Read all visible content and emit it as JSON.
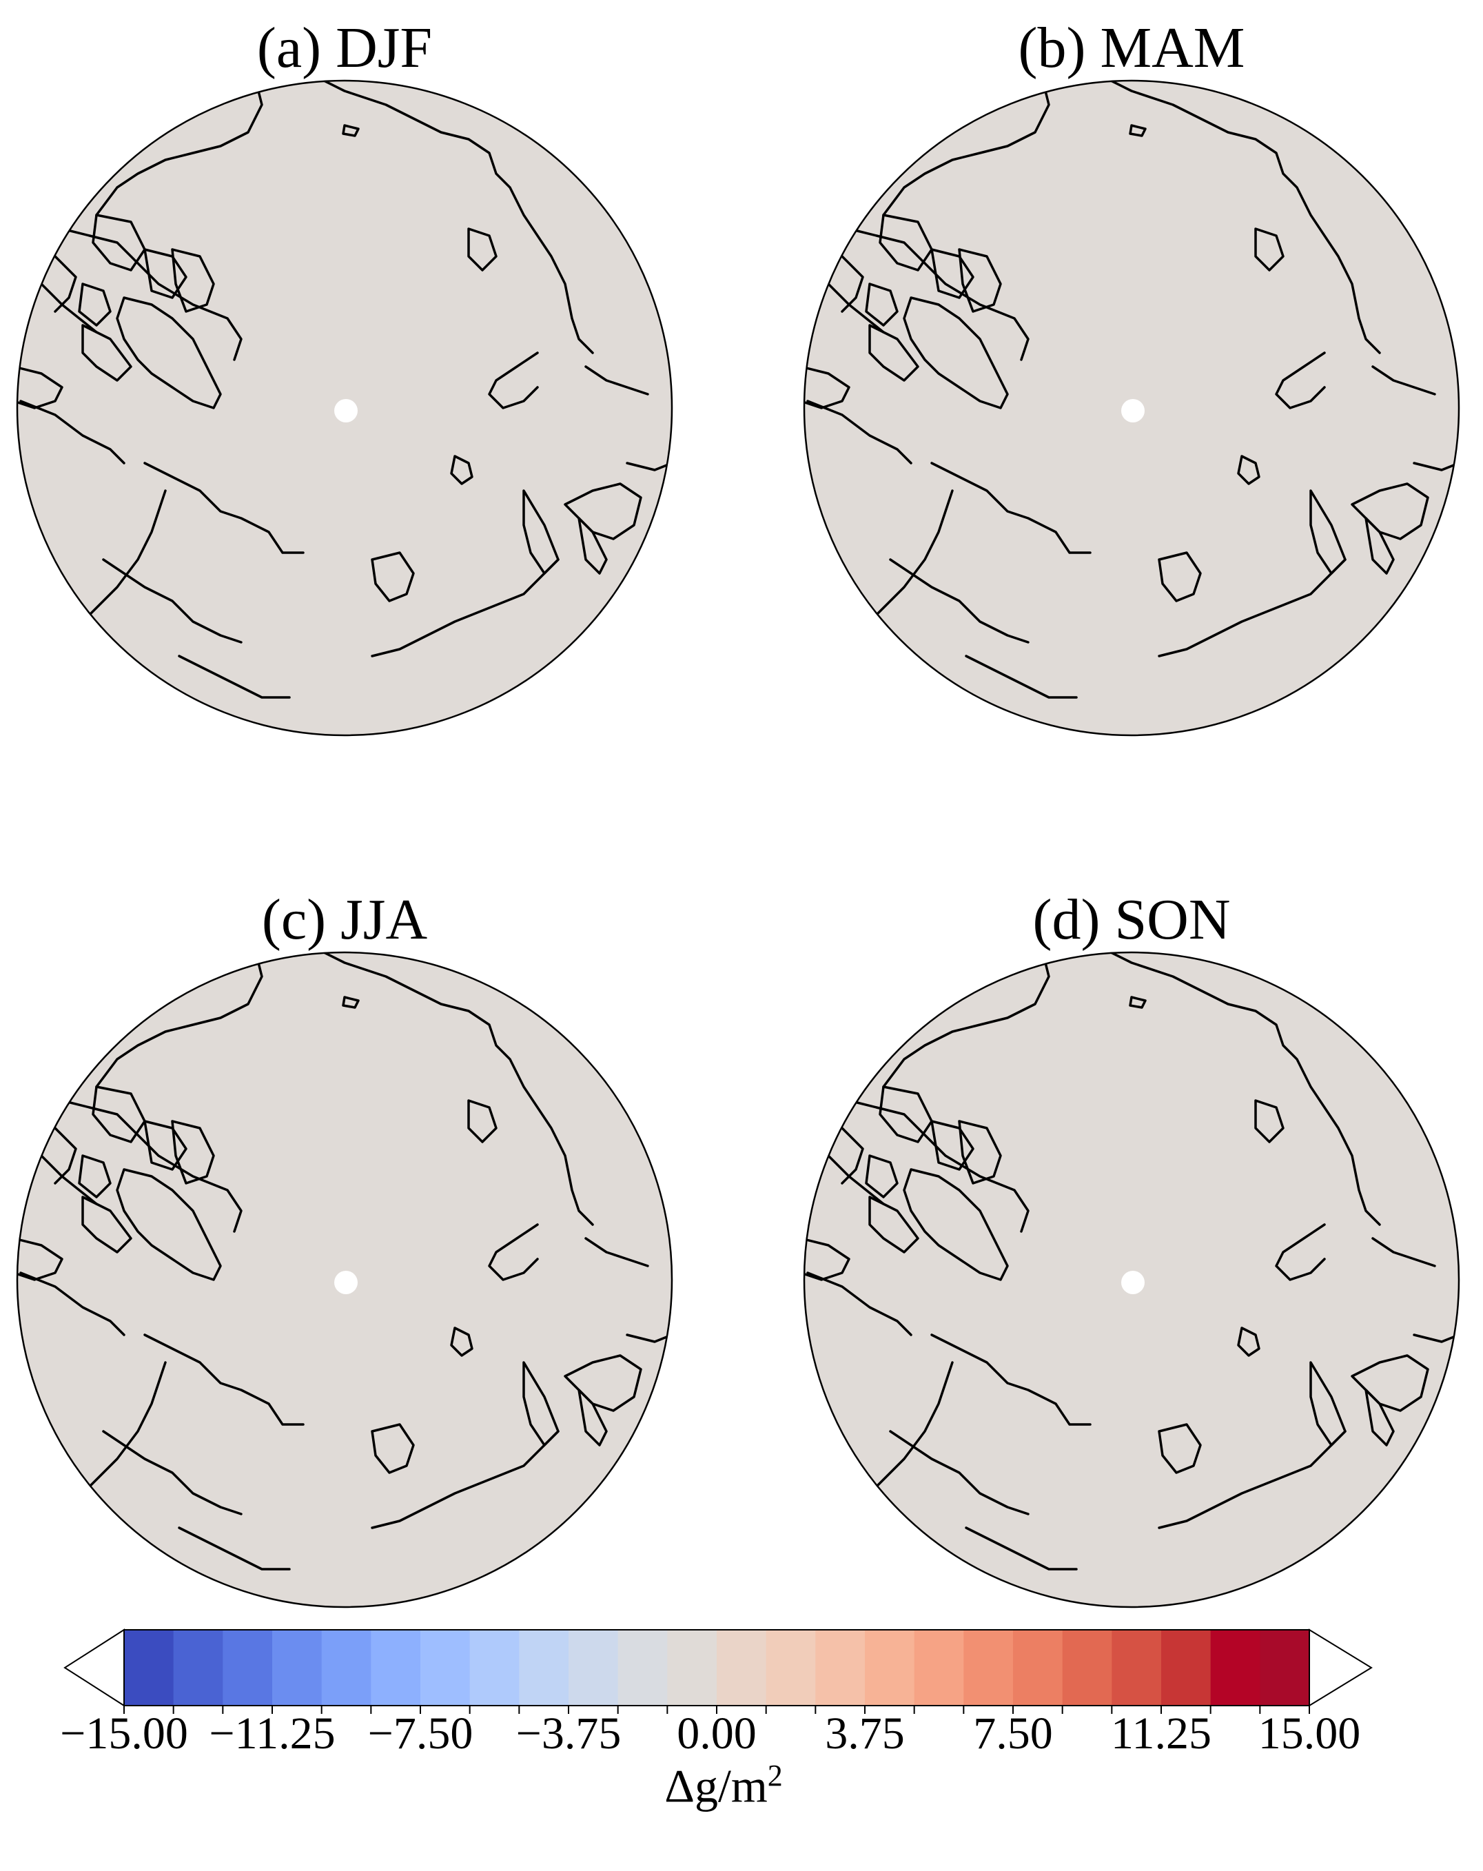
{
  "panels": [
    {
      "title": "(a) DJF"
    },
    {
      "title": "(b) MAM"
    },
    {
      "title": "(c) JJA"
    },
    {
      "title": "(d) SON"
    }
  ],
  "map": {
    "projection": "north-polar-stereographic",
    "land_fill": "#e0dbd7",
    "coastline_color": "#000000",
    "pole_mask_color": "#ffffff"
  },
  "colorbar": {
    "min": -15.0,
    "max": 15.0,
    "n_levels": 24,
    "extend": "both",
    "tick_labels": [
      "−15.00",
      "−11.25",
      "−7.50",
      "−3.75",
      "0.00",
      "3.75",
      "7.50",
      "11.25",
      "15.00"
    ],
    "tick_values": [
      -15.0,
      -11.25,
      -7.5,
      -3.75,
      0.0,
      3.75,
      7.5,
      11.25,
      15.0
    ],
    "unit_base": "Δg/m",
    "unit_exp": "2",
    "colors": [
      "#3b4cc0",
      "#4a63d3",
      "#5977e3",
      "#6b8df0",
      "#7b9ff9",
      "#8db0fe",
      "#9ebeff",
      "#afcafc",
      "#c0d4f5",
      "#cdd9ec",
      "#d9dce1",
      "#e0dbd7",
      "#ead4c8",
      "#f1cdba",
      "#f5c1a9",
      "#f7b396",
      "#f6a385",
      "#f29072",
      "#ec7f63",
      "#e26952",
      "#d65244",
      "#c73635",
      "#b40426",
      "#a80a2a"
    ]
  }
}
